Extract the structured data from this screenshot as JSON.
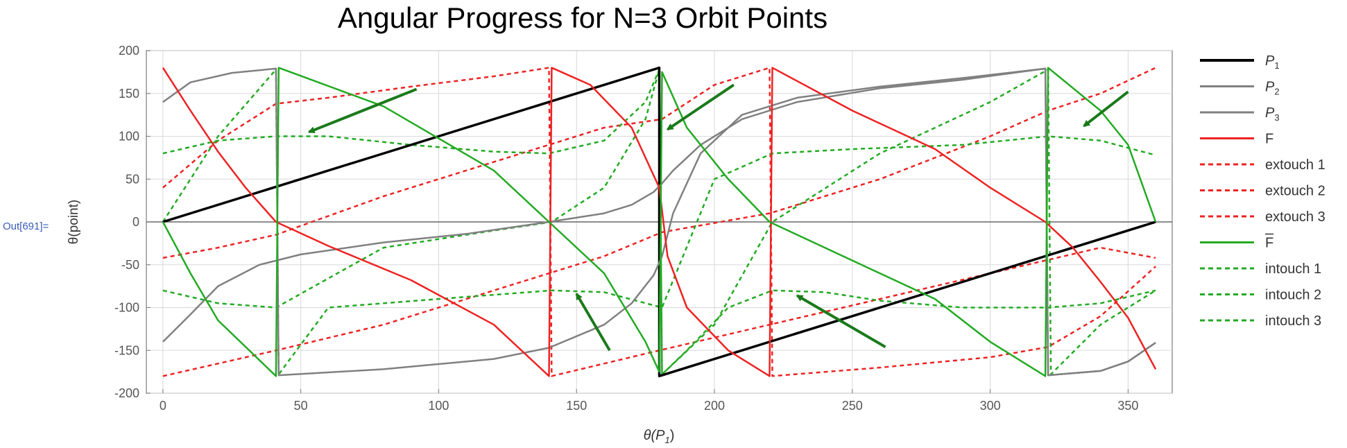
{
  "notebook": {
    "output_label": "Out[691]="
  },
  "chart_data": {
    "type": "line",
    "title": "Angular Progress for N=3 Orbit Points",
    "xlabel_main": "θ(P",
    "xlabel_sub": "1",
    "xlabel_close": ")",
    "ylabel": "θ(point)",
    "xlim": [
      -6,
      366
    ],
    "ylim": [
      -200,
      200
    ],
    "xticks": [
      0,
      50,
      100,
      150,
      200,
      250,
      300,
      350
    ],
    "yticks": [
      -200,
      -150,
      -100,
      -50,
      0,
      50,
      100,
      150,
      200
    ],
    "grid": true,
    "legend_position": "right",
    "colors": {
      "p1": "#000000",
      "p2p3": "#808080",
      "f": "#ee2222",
      "fbar": "#22aa22",
      "arrow": "#1a7a1a"
    },
    "series": [
      {
        "name": "P1",
        "label_main": "P",
        "label_sub": "1",
        "color": "#000000",
        "dash": false,
        "width": 3.5,
        "points": [
          [
            0,
            0
          ],
          [
            180,
            180
          ],
          [
            180,
            -180
          ],
          [
            360,
            0
          ]
        ]
      },
      {
        "name": "P2",
        "label_main": "P",
        "label_sub": "2",
        "color": "#808080",
        "dash": false,
        "width": 2.5,
        "points": [
          [
            0,
            140
          ],
          [
            10,
            163
          ],
          [
            25,
            174
          ],
          [
            41,
            179
          ],
          [
            42,
            -179
          ],
          [
            80,
            -172
          ],
          [
            120,
            -160
          ],
          [
            140,
            -147
          ],
          [
            160,
            -120
          ],
          [
            170,
            -95
          ],
          [
            178,
            -62
          ],
          [
            181,
            -40
          ],
          [
            185,
            10
          ],
          [
            195,
            80
          ],
          [
            210,
            125
          ],
          [
            230,
            145
          ],
          [
            260,
            158
          ],
          [
            290,
            168
          ],
          [
            320,
            179
          ],
          [
            321,
            -179
          ],
          [
            340,
            -174
          ],
          [
            350,
            -163
          ],
          [
            360,
            -141
          ]
        ]
      },
      {
        "name": "P3",
        "label_main": "P",
        "label_sub": "3",
        "color": "#808080",
        "dash": false,
        "width": 2.5,
        "points": [
          [
            0,
            -140
          ],
          [
            10,
            -108
          ],
          [
            20,
            -75
          ],
          [
            35,
            -50
          ],
          [
            50,
            -38
          ],
          [
            80,
            -24
          ],
          [
            110,
            -14
          ],
          [
            140,
            0
          ],
          [
            160,
            10
          ],
          [
            170,
            20
          ],
          [
            178,
            35
          ],
          [
            181,
            45
          ],
          [
            185,
            60
          ],
          [
            195,
            90
          ],
          [
            210,
            120
          ],
          [
            230,
            140
          ],
          [
            260,
            156
          ],
          [
            290,
            166
          ],
          [
            320,
            179
          ],
          [
            321,
            -179
          ],
          [
            340,
            -174
          ],
          [
            350,
            -163
          ],
          [
            360,
            -141
          ]
        ]
      },
      {
        "name": "F",
        "label_main": "F",
        "label_sub": "",
        "color": "#ee2222",
        "dash": false,
        "width": 2.5,
        "points": [
          [
            0,
            180
          ],
          [
            10,
            130
          ],
          [
            20,
            82
          ],
          [
            30,
            40
          ],
          [
            41,
            0
          ],
          [
            60,
            -28
          ],
          [
            90,
            -68
          ],
          [
            120,
            -120
          ],
          [
            140,
            -180
          ],
          [
            141,
            180
          ],
          [
            155,
            160
          ],
          [
            170,
            110
          ],
          [
            180,
            40
          ],
          [
            183,
            -40
          ],
          [
            190,
            -100
          ],
          [
            205,
            -150
          ],
          [
            220,
            -180
          ],
          [
            221,
            180
          ],
          [
            250,
            130
          ],
          [
            280,
            85
          ],
          [
            300,
            40
          ],
          [
            320,
            0
          ],
          [
            330,
            -30
          ],
          [
            340,
            -70
          ],
          [
            350,
            -112
          ],
          [
            360,
            -172
          ]
        ]
      },
      {
        "name": "extouch 1",
        "label_main": "extouch 1",
        "label_sub": "",
        "color": "#ee2222",
        "dash": true,
        "width": 2.5,
        "points": [
          [
            0,
            40
          ],
          [
            20,
            95
          ],
          [
            41,
            138
          ],
          [
            60,
            145
          ],
          [
            90,
            158
          ],
          [
            120,
            170
          ],
          [
            140,
            180
          ],
          [
            141,
            -180
          ],
          [
            180,
            -150
          ],
          [
            220,
            -120
          ],
          [
            260,
            -90
          ],
          [
            300,
            -60
          ],
          [
            340,
            -30
          ],
          [
            360,
            -42
          ]
        ]
      },
      {
        "name": "extouch 2",
        "label_main": "extouch 2",
        "label_sub": "",
        "color": "#ee2222",
        "dash": true,
        "width": 2.5,
        "points": [
          [
            0,
            -42
          ],
          [
            20,
            -30
          ],
          [
            41,
            -15
          ],
          [
            80,
            30
          ],
          [
            120,
            70
          ],
          [
            160,
            110
          ],
          [
            181,
            120
          ],
          [
            200,
            160
          ],
          [
            220,
            180
          ],
          [
            221,
            -180
          ],
          [
            260,
            -170
          ],
          [
            300,
            -158
          ],
          [
            321,
            -146
          ],
          [
            340,
            -110
          ],
          [
            360,
            -52
          ]
        ]
      },
      {
        "name": "extouch 3",
        "label_main": "extouch 3",
        "label_sub": "",
        "color": "#ee2222",
        "dash": true,
        "width": 2.5,
        "points": [
          [
            0,
            -180
          ],
          [
            41,
            -150
          ],
          [
            80,
            -120
          ],
          [
            120,
            -80
          ],
          [
            160,
            -40
          ],
          [
            181,
            -12
          ],
          [
            220,
            10
          ],
          [
            260,
            50
          ],
          [
            300,
            100
          ],
          [
            321,
            130
          ],
          [
            340,
            150
          ],
          [
            360,
            180
          ]
        ]
      },
      {
        "name": "F̄",
        "label_main": "F",
        "label_sub": "",
        "label_bar": true,
        "color": "#22aa22",
        "dash": false,
        "width": 2.5,
        "points": [
          [
            0,
            0
          ],
          [
            10,
            -60
          ],
          [
            20,
            -115
          ],
          [
            41,
            -180
          ],
          [
            42,
            180
          ],
          [
            80,
            135
          ],
          [
            120,
            60
          ],
          [
            140,
            0
          ],
          [
            160,
            -60
          ],
          [
            175,
            -140
          ],
          [
            180,
            -175
          ],
          [
            181,
            175
          ],
          [
            190,
            110
          ],
          [
            205,
            50
          ],
          [
            220,
            0
          ],
          [
            250,
            -45
          ],
          [
            280,
            -90
          ],
          [
            300,
            -140
          ],
          [
            320,
            -180
          ],
          [
            321,
            180
          ],
          [
            340,
            130
          ],
          [
            350,
            90
          ],
          [
            360,
            0
          ]
        ]
      },
      {
        "name": "intouch 1",
        "label_main": "intouch 1",
        "label_sub": "",
        "color": "#22aa22",
        "dash": true,
        "width": 2.5,
        "points": [
          [
            0,
            80
          ],
          [
            20,
            95
          ],
          [
            41,
            100
          ],
          [
            60,
            100
          ],
          [
            90,
            90
          ],
          [
            120,
            82
          ],
          [
            140,
            80
          ],
          [
            160,
            95
          ],
          [
            175,
            140
          ],
          [
            180,
            178
          ],
          [
            181,
            -178
          ],
          [
            190,
            -150
          ],
          [
            205,
            -100
          ],
          [
            221,
            -80
          ],
          [
            240,
            -82
          ],
          [
            260,
            -92
          ],
          [
            290,
            -100
          ],
          [
            321,
            -100
          ],
          [
            340,
            -95
          ],
          [
            360,
            -80
          ]
        ]
      },
      {
        "name": "intouch 2",
        "label_main": "intouch 2",
        "label_sub": "",
        "color": "#22aa22",
        "dash": true,
        "width": 2.5,
        "points": [
          [
            0,
            0
          ],
          [
            20,
            100
          ],
          [
            41,
            178
          ],
          [
            42,
            -178
          ],
          [
            60,
            -100
          ],
          [
            100,
            -90
          ],
          [
            141,
            -80
          ],
          [
            160,
            -82
          ],
          [
            181,
            -100
          ],
          [
            200,
            50
          ],
          [
            221,
            80
          ],
          [
            250,
            85
          ],
          [
            290,
            90
          ],
          [
            321,
            100
          ],
          [
            340,
            95
          ],
          [
            360,
            78
          ]
        ]
      },
      {
        "name": "intouch 3",
        "label_main": "intouch 3",
        "label_sub": "",
        "color": "#22aa22",
        "dash": true,
        "width": 2.5,
        "points": [
          [
            0,
            -80
          ],
          [
            20,
            -95
          ],
          [
            41,
            -100
          ],
          [
            80,
            -30
          ],
          [
            120,
            -10
          ],
          [
            141,
            0
          ],
          [
            160,
            40
          ],
          [
            175,
            120
          ],
          [
            180,
            178
          ],
          [
            181,
            -178
          ],
          [
            200,
            -120
          ],
          [
            221,
            0
          ],
          [
            260,
            80
          ],
          [
            300,
            140
          ],
          [
            321,
            178
          ],
          [
            322,
            -178
          ],
          [
            340,
            -120
          ],
          [
            360,
            -80
          ]
        ]
      }
    ],
    "annotations": [
      {
        "type": "arrow",
        "from": [
          92,
          155
        ],
        "to": [
          53,
          105
        ]
      },
      {
        "type": "arrow",
        "from": [
          207,
          160
        ],
        "to": [
          183,
          108
        ]
      },
      {
        "type": "arrow",
        "from": [
          350,
          152
        ],
        "to": [
          334,
          112
        ]
      },
      {
        "type": "arrow",
        "from": [
          162,
          -150
        ],
        "to": [
          150,
          -84
        ]
      },
      {
        "type": "arrow",
        "from": [
          262,
          -146
        ],
        "to": [
          230,
          -86
        ]
      }
    ]
  }
}
